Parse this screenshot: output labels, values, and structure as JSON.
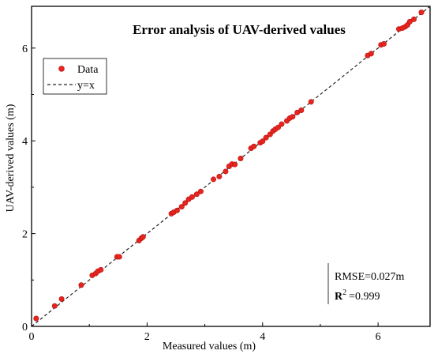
{
  "chart_data": {
    "type": "scatter",
    "title": "Error analysis of UAV-derived values",
    "xlabel": "Measured values (m)",
    "ylabel": "UAV-derived values (m)",
    "xlim": [
      0,
      6.9
    ],
    "ylim": [
      0,
      6.9
    ],
    "xticks": [
      0,
      2,
      4,
      6
    ],
    "yticks": [
      0,
      2,
      4,
      6
    ],
    "xtick_labels": [
      "0",
      "2",
      "4",
      "6"
    ],
    "ytick_labels": [
      "0",
      "2",
      "4",
      "6"
    ],
    "grid": false,
    "legend_position": "top-left",
    "series": [
      {
        "name": "Data",
        "marker": "circle",
        "color": "#e8241f",
        "points": [
          [
            0.08,
            0.17
          ],
          [
            0.4,
            0.44
          ],
          [
            0.52,
            0.59
          ],
          [
            0.86,
            0.89
          ],
          [
            1.05,
            1.1
          ],
          [
            1.11,
            1.14
          ],
          [
            1.15,
            1.19
          ],
          [
            1.2,
            1.22
          ],
          [
            1.48,
            1.5
          ],
          [
            1.52,
            1.5
          ],
          [
            1.86,
            1.85
          ],
          [
            1.9,
            1.9
          ],
          [
            1.93,
            1.93
          ],
          [
            2.42,
            2.43
          ],
          [
            2.46,
            2.46
          ],
          [
            2.52,
            2.5
          ],
          [
            2.6,
            2.58
          ],
          [
            2.66,
            2.66
          ],
          [
            2.72,
            2.74
          ],
          [
            2.78,
            2.79
          ],
          [
            2.86,
            2.85
          ],
          [
            2.93,
            2.91
          ],
          [
            3.15,
            3.17
          ],
          [
            3.25,
            3.23
          ],
          [
            3.36,
            3.34
          ],
          [
            3.42,
            3.45
          ],
          [
            3.47,
            3.5
          ],
          [
            3.52,
            3.49
          ],
          [
            3.62,
            3.62
          ],
          [
            3.8,
            3.84
          ],
          [
            3.85,
            3.88
          ],
          [
            3.96,
            3.96
          ],
          [
            4.0,
            3.99
          ],
          [
            4.06,
            4.07
          ],
          [
            4.13,
            4.14
          ],
          [
            4.18,
            4.21
          ],
          [
            4.22,
            4.25
          ],
          [
            4.27,
            4.29
          ],
          [
            4.33,
            4.36
          ],
          [
            4.42,
            4.43
          ],
          [
            4.47,
            4.49
          ],
          [
            4.52,
            4.52
          ],
          [
            4.6,
            4.61
          ],
          [
            4.67,
            4.66
          ],
          [
            4.84,
            4.84
          ],
          [
            5.82,
            5.84
          ],
          [
            5.88,
            5.88
          ],
          [
            6.05,
            6.07
          ],
          [
            6.1,
            6.09
          ],
          [
            6.36,
            6.41
          ],
          [
            6.42,
            6.43
          ],
          [
            6.47,
            6.46
          ],
          [
            6.51,
            6.5
          ],
          [
            6.55,
            6.57
          ],
          [
            6.62,
            6.62
          ],
          [
            6.75,
            6.77
          ]
        ]
      },
      {
        "name": "y=x",
        "type": "line",
        "style": "dashed",
        "color": "#222222",
        "x": [
          0,
          6.9
        ],
        "y": [
          0,
          6.9
        ]
      }
    ],
    "annotations": {
      "rmse": "RMSE=0.027m",
      "r2_letter": "R",
      "r2_exponent": "2",
      "r2_value": "=0.999"
    }
  }
}
